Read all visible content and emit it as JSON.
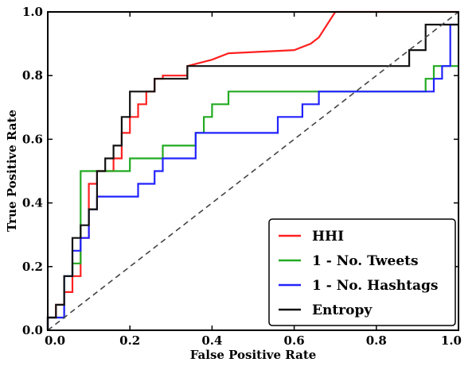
{
  "chart_data": {
    "type": "line",
    "title": "",
    "xlabel": "False Positive Rate",
    "ylabel": "True Positive Rate",
    "xlim": [
      0.0,
      1.0
    ],
    "ylim": [
      0.0,
      1.0
    ],
    "x_ticks": [
      "0.0",
      "0.2",
      "0.4",
      "0.6",
      "0.8",
      "1.0"
    ],
    "y_ticks": [
      "0.0",
      "0.2",
      "0.4",
      "0.6",
      "0.8",
      "1.0"
    ],
    "grid": false,
    "legend_position": "bottom-right",
    "series": [
      {
        "name": "HHI",
        "color": "#ff2020",
        "x": [
          0.0,
          0.0,
          0.02,
          0.02,
          0.04,
          0.04,
          0.06,
          0.06,
          0.08,
          0.08,
          0.1,
          0.1,
          0.12,
          0.12,
          0.14,
          0.14,
          0.16,
          0.16,
          0.18,
          0.18,
          0.2,
          0.2,
          0.22,
          0.22,
          0.24,
          0.24,
          0.26,
          0.26,
          0.28,
          0.28,
          0.34,
          0.34,
          0.4,
          0.44,
          0.6,
          0.64,
          0.66,
          0.68,
          0.7,
          0.98,
          1.0
        ],
        "y": [
          0.0,
          0.04,
          0.04,
          0.08,
          0.08,
          0.12,
          0.12,
          0.17,
          0.17,
          0.29,
          0.29,
          0.46,
          0.46,
          0.5,
          0.5,
          0.5,
          0.5,
          0.54,
          0.54,
          0.62,
          0.62,
          0.67,
          0.67,
          0.71,
          0.71,
          0.75,
          0.75,
          0.79,
          0.79,
          0.8,
          0.8,
          0.83,
          0.85,
          0.87,
          0.88,
          0.9,
          0.92,
          0.96,
          1.0,
          1.0,
          1.0
        ]
      },
      {
        "name": "1 - No. Tweets",
        "color": "#22aa22",
        "x": [
          0.0,
          0.0,
          0.04,
          0.04,
          0.06,
          0.06,
          0.08,
          0.08,
          0.1,
          0.1,
          0.12,
          0.12,
          0.2,
          0.2,
          0.28,
          0.28,
          0.36,
          0.36,
          0.38,
          0.38,
          0.4,
          0.4,
          0.44,
          0.44,
          0.92,
          0.92,
          0.94,
          0.94,
          1.0
        ],
        "y": [
          0.0,
          0.04,
          0.04,
          0.17,
          0.17,
          0.21,
          0.21,
          0.5,
          0.5,
          0.5,
          0.5,
          0.5,
          0.5,
          0.54,
          0.54,
          0.58,
          0.58,
          0.62,
          0.62,
          0.67,
          0.67,
          0.71,
          0.71,
          0.75,
          0.75,
          0.79,
          0.79,
          0.83,
          0.83
        ]
      },
      {
        "name": "1 - No. Hashtags",
        "color": "#2222ff",
        "x": [
          0.0,
          0.0,
          0.04,
          0.04,
          0.06,
          0.06,
          0.08,
          0.08,
          0.1,
          0.1,
          0.12,
          0.12,
          0.18,
          0.18,
          0.22,
          0.22,
          0.26,
          0.26,
          0.28,
          0.28,
          0.36,
          0.36,
          0.56,
          0.56,
          0.62,
          0.62,
          0.66,
          0.66,
          0.94,
          0.94,
          0.96,
          0.96,
          0.98,
          0.98,
          1.0
        ],
        "y": [
          0.0,
          0.04,
          0.04,
          0.17,
          0.17,
          0.25,
          0.25,
          0.29,
          0.29,
          0.38,
          0.38,
          0.42,
          0.42,
          0.42,
          0.42,
          0.46,
          0.46,
          0.5,
          0.5,
          0.54,
          0.54,
          0.62,
          0.62,
          0.67,
          0.67,
          0.71,
          0.71,
          0.75,
          0.75,
          0.79,
          0.79,
          0.83,
          0.83,
          0.96,
          0.96
        ]
      },
      {
        "name": "Entropy",
        "color": "#111111",
        "x": [
          0.0,
          0.0,
          0.02,
          0.02,
          0.04,
          0.04,
          0.06,
          0.06,
          0.08,
          0.08,
          0.1,
          0.1,
          0.12,
          0.12,
          0.14,
          0.14,
          0.16,
          0.16,
          0.18,
          0.18,
          0.2,
          0.2,
          0.22,
          0.22,
          0.26,
          0.26,
          0.34,
          0.34,
          0.88,
          0.88,
          0.92,
          0.92,
          0.98,
          0.98,
          1.0
        ],
        "y": [
          0.0,
          0.04,
          0.04,
          0.08,
          0.08,
          0.17,
          0.17,
          0.29,
          0.29,
          0.33,
          0.33,
          0.38,
          0.38,
          0.5,
          0.5,
          0.54,
          0.54,
          0.58,
          0.58,
          0.67,
          0.67,
          0.75,
          0.75,
          0.75,
          0.75,
          0.79,
          0.79,
          0.83,
          0.83,
          0.88,
          0.88,
          0.96,
          0.96,
          0.96,
          0.96
        ]
      },
      {
        "name": "",
        "color": "#444444",
        "dash": "dashed",
        "x": [
          0.0,
          1.0
        ],
        "y": [
          0.0,
          1.0
        ]
      }
    ]
  }
}
